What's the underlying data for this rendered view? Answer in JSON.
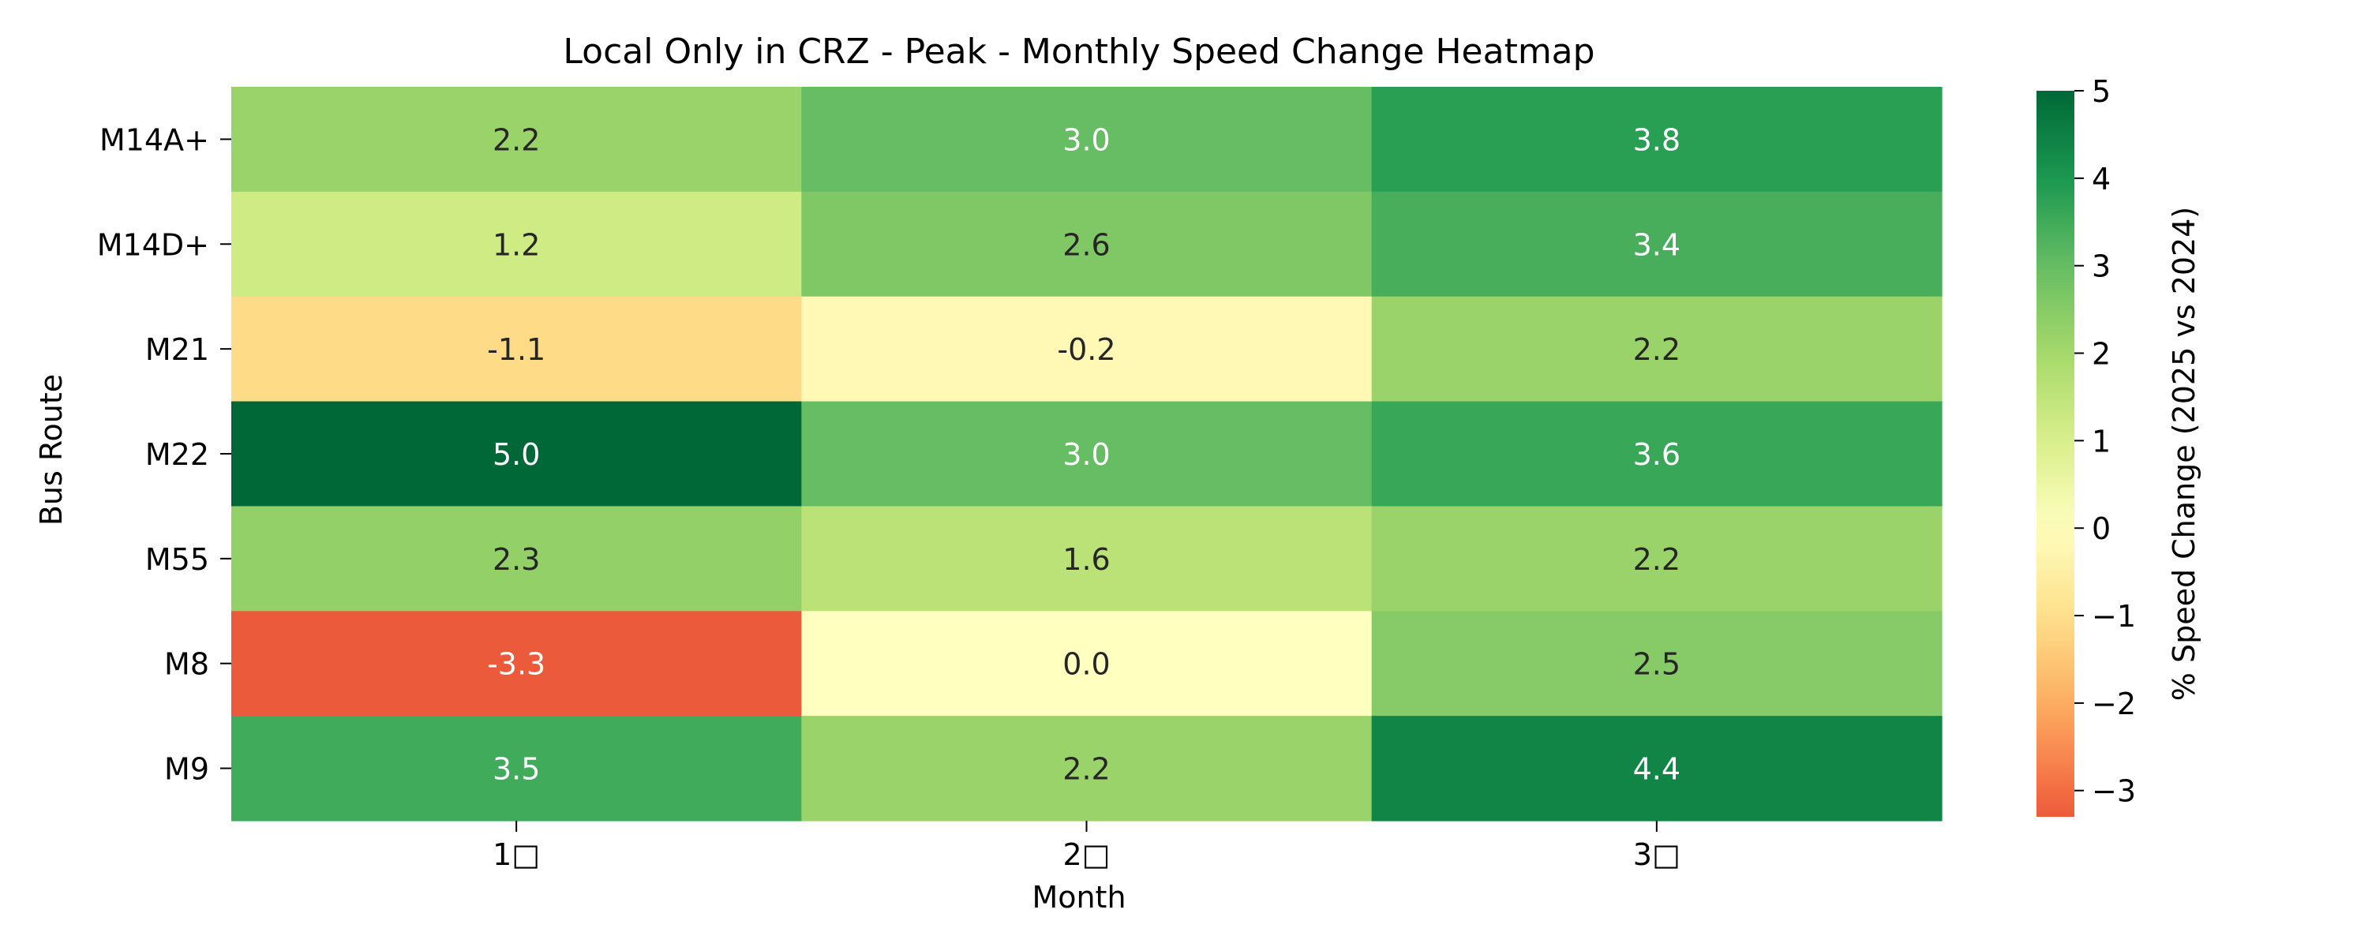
{
  "chart_data": {
    "type": "heatmap",
    "title": "Local Only in CRZ - Peak - Monthly Speed Change Heatmap",
    "xlabel": "Month",
    "ylabel": "Bus Route",
    "x_categories": [
      "1□",
      "2□",
      "3□"
    ],
    "y_categories": [
      "M14A+",
      "M14D+",
      "M21",
      "M22",
      "M55",
      "M8",
      "M9"
    ],
    "values": [
      [
        2.2,
        3.0,
        3.8
      ],
      [
        1.2,
        2.6,
        3.4
      ],
      [
        -1.1,
        -0.2,
        2.2
      ],
      [
        5.0,
        3.0,
        3.6
      ],
      [
        2.3,
        1.6,
        2.2
      ],
      [
        -3.3,
        0.0,
        2.5
      ],
      [
        3.5,
        2.2,
        4.4
      ]
    ],
    "cell_labels": [
      [
        "2.2",
        "3.0",
        "3.8"
      ],
      [
        "1.2",
        "2.6",
        "3.4"
      ],
      [
        "-1.1",
        "-0.2",
        "2.2"
      ],
      [
        "5.0",
        "3.0",
        "3.6"
      ],
      [
        "2.3",
        "1.6",
        "2.2"
      ],
      [
        "-3.3",
        "0.0",
        "2.5"
      ],
      [
        "3.5",
        "2.2",
        "4.4"
      ]
    ],
    "colorbar": {
      "label": "% Speed Change (2025 vs 2024)",
      "range": [
        -3.3,
        5.0
      ],
      "center": 0,
      "ticks": [
        -3,
        -2,
        -1,
        0,
        1,
        2,
        3,
        4,
        5
      ],
      "tick_labels": [
        "−3",
        "−2",
        "−1",
        "0",
        "1",
        "2",
        "3",
        "4",
        "5"
      ],
      "colormap": "RdYlGn",
      "placement": "right"
    },
    "annotation_colors": {
      "dark": "#262626",
      "light": "#ffffff"
    }
  }
}
